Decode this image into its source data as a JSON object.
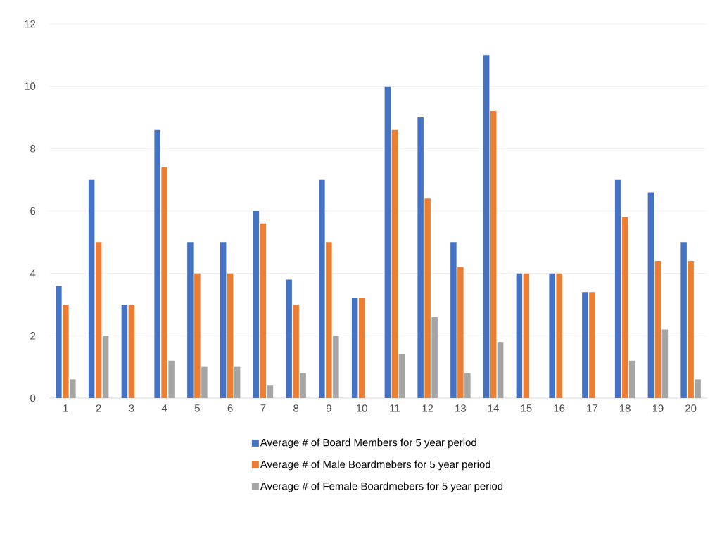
{
  "chart_data": {
    "type": "bar",
    "categories": [
      "1",
      "2",
      "3",
      "4",
      "5",
      "6",
      "7",
      "8",
      "9",
      "10",
      "11",
      "12",
      "13",
      "14",
      "15",
      "16",
      "17",
      "18",
      "19",
      "20"
    ],
    "series": [
      {
        "name": "Average # of Board Members for 5 year period",
        "color": "#4472c4",
        "values": [
          3.6,
          7,
          3,
          8.6,
          5,
          5,
          6,
          3.8,
          7,
          3.2,
          10,
          9,
          5,
          11,
          4,
          4,
          3.4,
          7,
          6.6,
          5
        ]
      },
      {
        "name": "Average # of Male Boardmebers for 5 year period",
        "color": "#ed7d31",
        "values": [
          3,
          5,
          3,
          7.4,
          4,
          4,
          5.6,
          3,
          5,
          3.2,
          8.6,
          6.4,
          4.2,
          9.2,
          4,
          4,
          3.4,
          5.8,
          4.4,
          4.4
        ]
      },
      {
        "name": "Average # of Female Boardmebers for 5 year period",
        "color": "#a5a5a5",
        "values": [
          0.6,
          2,
          0,
          1.2,
          1,
          1,
          0.4,
          0.8,
          2,
          0,
          1.4,
          2.6,
          0.8,
          1.8,
          0,
          0,
          0,
          1.2,
          2.2,
          0.6
        ]
      }
    ],
    "ylim": [
      0,
      12
    ],
    "yticks": [
      0,
      2,
      4,
      6,
      8,
      10,
      12
    ],
    "grid": "y",
    "legend": "bottom"
  }
}
